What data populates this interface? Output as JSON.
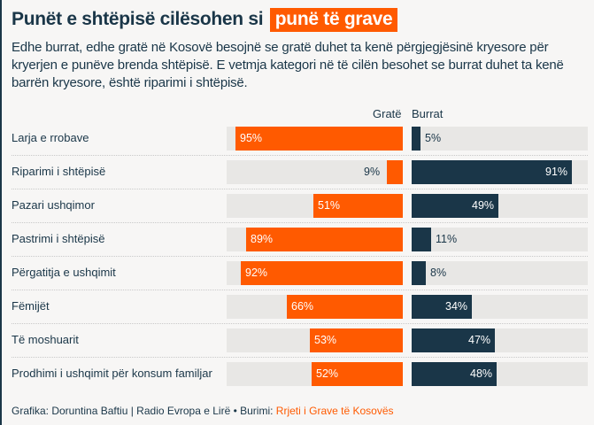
{
  "title": {
    "text": "Punët e shtëpisë cilësohen si",
    "highlight": "punë të grave"
  },
  "subtitle": "Edhe burrat, edhe gratë në Kosovë besojnë se gratë duhet ta kenë përgjegjësinë kryesore për kryerjen e punëve brenda shtëpisë. E vetmja kategori në të cilën besohet se burrat duhet ta kenë barrën kryesore, është riparimi i shtëpisë.",
  "colors": {
    "women": "#ff5a00",
    "men": "#1a3648",
    "track": "#e8e7e5",
    "background": "#f7f6f5"
  },
  "chart_data": {
    "type": "bar",
    "orientation": "horizontal-diverging",
    "title": "Punët e shtëpisë cilësohen si punë të grave",
    "categories": [
      "Larja e rrobave",
      "Riparimi i shtëpisë",
      "Pazari ushqimor",
      "Pastrimi i shtëpisë",
      "Përgatitja e ushqimit",
      "Fëmijët",
      "Të moshuarit",
      "Prodhimi i ushqimit për konsum familjar"
    ],
    "series": [
      {
        "name": "Gratë",
        "values": [
          95,
          9,
          51,
          89,
          92,
          66,
          53,
          52
        ]
      },
      {
        "name": "Burrat",
        "values": [
          5,
          91,
          49,
          11,
          8,
          34,
          47,
          48
        ]
      }
    ],
    "unit": "%",
    "xlim": [
      0,
      100
    ],
    "grid": false
  },
  "footer": {
    "credit": "Grafika: Doruntina Baftiu | Radio Evropa e Lirë • Burimi: ",
    "source": "Rrjeti i Grave të Kosovës"
  }
}
